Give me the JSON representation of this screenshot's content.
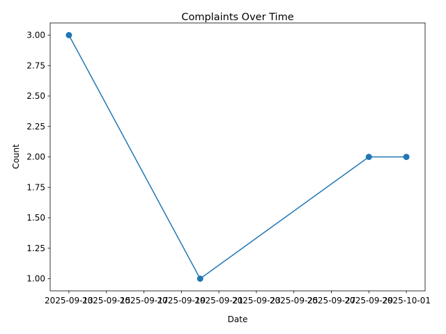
{
  "chart_data": {
    "type": "line",
    "title": "Complaints Over Time",
    "xlabel": "Date",
    "ylabel": "Count",
    "x": [
      "2025-09-13",
      "2025-09-20",
      "2025-09-29",
      "2025-10-01"
    ],
    "series": [
      {
        "values": [
          3,
          1,
          2,
          2
        ],
        "color": "#1f77b4",
        "marker": "circle"
      }
    ],
    "xlim": [
      "2025-09-12",
      "2025-10-02"
    ],
    "ylim": [
      0.9,
      3.1
    ],
    "x_ticks": [
      "2025-09-13",
      "2025-09-15",
      "2025-09-17",
      "2025-09-19",
      "2025-09-21",
      "2025-09-23",
      "2025-09-25",
      "2025-09-27",
      "2025-09-29",
      "2025-10-01"
    ],
    "y_ticks": [
      "1.00",
      "1.25",
      "1.50",
      "1.75",
      "2.00",
      "2.25",
      "2.50",
      "2.75",
      "3.00"
    ],
    "grid": false,
    "legend": "none"
  }
}
